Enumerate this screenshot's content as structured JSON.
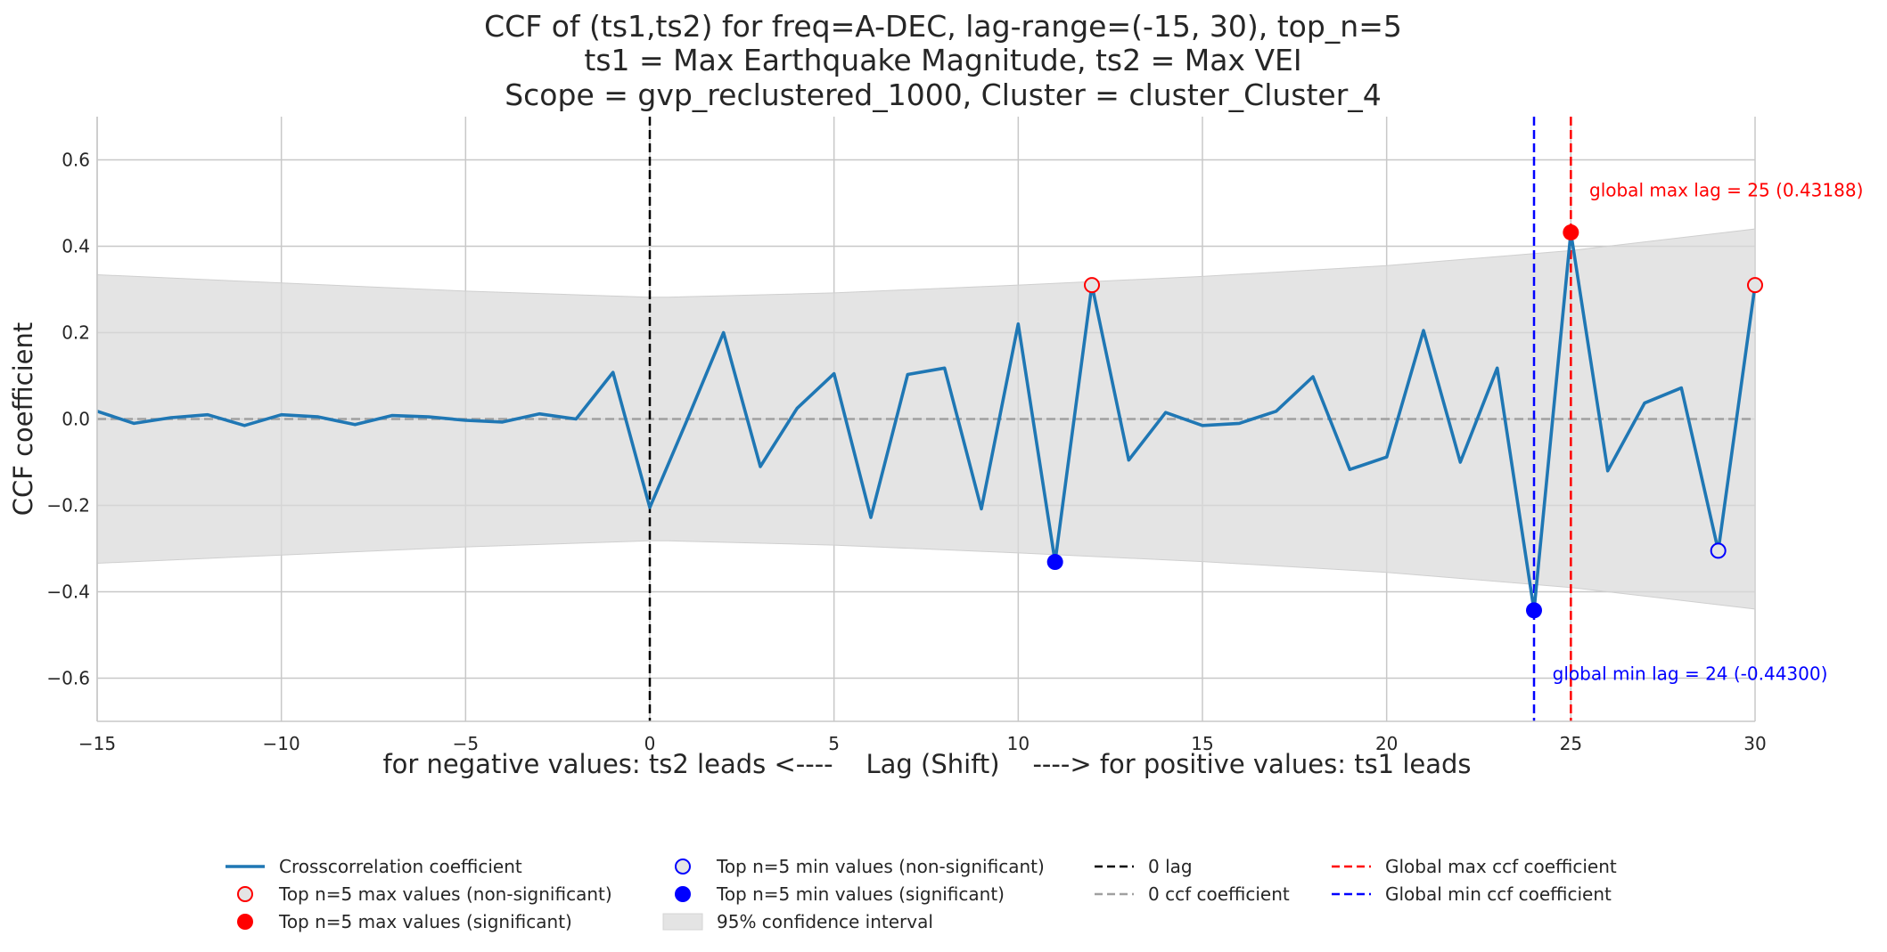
{
  "chart_data": {
    "type": "line",
    "title_lines": [
      "CCF of (ts1,ts2) for freq=A-DEC, lag-range=(-15, 30), top_n=5",
      "ts1 = Max Earthquake Magnitude, ts2 = Max VEI",
      "Scope = gvp_reclustered_1000, Cluster = cluster_Cluster_4"
    ],
    "xlabel": "for negative values: ts2 leads <----    Lag (Shift)    ----> for positive values: ts1 leads",
    "ylabel": "CCF coefficient",
    "xlim": [
      -15,
      30
    ],
    "ylim": [
      -0.7,
      0.7
    ],
    "xticks": [
      -15,
      -10,
      -5,
      0,
      5,
      10,
      15,
      20,
      25,
      30
    ],
    "xtick_labels": [
      "−15",
      "−10",
      "−5",
      "0",
      "5",
      "10",
      "15",
      "20",
      "25",
      "30"
    ],
    "yticks": [
      -0.6,
      -0.4,
      -0.2,
      0.0,
      0.2,
      0.4,
      0.6
    ],
    "ytick_labels": [
      "−0.6",
      "−0.4",
      "−0.2",
      "0.0",
      "0.2",
      "0.4",
      "0.6"
    ],
    "grid": true,
    "series": [
      {
        "name": "Crosscorrelation coefficient",
        "color": "#1f77b4",
        "x": [
          -15,
          -14,
          -13,
          -12,
          -11,
          -10,
          -9,
          -8,
          -7,
          -6,
          -5,
          -4,
          -3,
          -2,
          -1,
          0,
          1,
          2,
          3,
          4,
          5,
          6,
          7,
          8,
          9,
          10,
          11,
          12,
          13,
          14,
          15,
          16,
          17,
          18,
          19,
          20,
          21,
          22,
          23,
          24,
          25,
          26,
          27,
          28,
          29,
          30
        ],
        "y": [
          0.018,
          -0.01,
          0.003,
          0.01,
          -0.015,
          0.01,
          0.005,
          -0.013,
          0.008,
          0.005,
          -0.003,
          -0.007,
          0.012,
          0.0,
          0.108,
          -0.205,
          -0.005,
          0.2,
          -0.11,
          0.025,
          0.105,
          -0.228,
          0.103,
          0.118,
          -0.208,
          0.22,
          -0.331,
          0.31,
          -0.095,
          0.015,
          -0.015,
          -0.01,
          0.018,
          0.098,
          -0.117,
          -0.088,
          0.205,
          -0.1,
          0.118,
          -0.443,
          0.432,
          -0.12,
          0.037,
          0.072,
          -0.305,
          0.31
        ]
      }
    ],
    "confidence_interval": {
      "name": "95% confidence interval",
      "color": "#e4e4e4",
      "x": [
        -15,
        -5,
        0,
        0.5,
        5,
        10,
        15,
        20,
        25,
        30
      ],
      "upper": [
        0.334,
        0.296,
        0.282,
        0.282,
        0.292,
        0.31,
        0.33,
        0.355,
        0.39,
        0.44
      ],
      "lower": [
        -0.334,
        -0.296,
        -0.282,
        -0.282,
        -0.292,
        -0.31,
        -0.33,
        -0.355,
        -0.39,
        -0.44
      ]
    },
    "top_max_nonsignificant": {
      "name": "Top n=5 max values (non-significant)",
      "points": [
        {
          "x": 12,
          "y": 0.31
        },
        {
          "x": 30,
          "y": 0.31
        }
      ]
    },
    "top_max_significant": {
      "name": "Top n=5 max values (significant)",
      "points": [
        {
          "x": 25,
          "y": 0.432
        }
      ]
    },
    "top_min_nonsignificant": {
      "name": "Top n=5 min values (non-significant)",
      "points": [
        {
          "x": 29,
          "y": -0.305
        }
      ]
    },
    "top_min_significant": {
      "name": "Top n=5 min values (significant)",
      "points": [
        {
          "x": 11,
          "y": -0.331
        },
        {
          "x": 24,
          "y": -0.443
        }
      ]
    },
    "reference_lines": {
      "zero_lag": {
        "name": "0 lag",
        "x": 0,
        "color": "#000000"
      },
      "zero_ccf": {
        "name": "0 ccf coefficient",
        "y": 0,
        "color": "#a0a0a0"
      },
      "global_max": {
        "name": "Global max ccf coefficient",
        "x": 25,
        "color": "#ff0000"
      },
      "global_min": {
        "name": "Global min ccf coefficient",
        "x": 24,
        "color": "#0000ff"
      }
    },
    "annotations": [
      {
        "text": "global max lag = 25 (0.43188)",
        "x": 25.5,
        "y": 0.53,
        "color": "#ff0000"
      },
      {
        "text": "global min lag = 24 (-0.44300)",
        "x": 24.5,
        "y": -0.59,
        "color": "#0000ff"
      }
    ],
    "legend": {
      "placement": "bottom-center",
      "columns": [
        [
          "Crosscorrelation coefficient",
          "Top n=5 max values (non-significant)",
          "Top n=5 max values (significant)"
        ],
        [
          "Top n=5 min values (non-significant)",
          "Top n=5 min values (significant)",
          "95% confidence interval"
        ],
        [
          "0 lag",
          "0 ccf coefficient"
        ],
        [
          "Global max ccf coefficient",
          "Global min ccf coefficient"
        ]
      ]
    }
  }
}
